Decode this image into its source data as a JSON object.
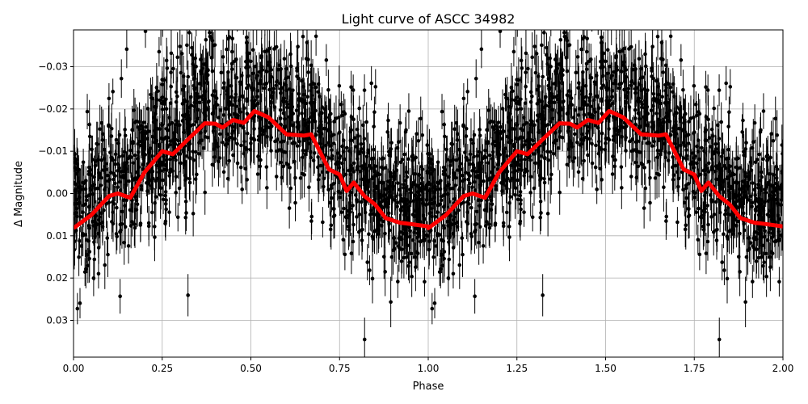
{
  "chart_data": {
    "type": "scatter",
    "title": "Light curve of ASCC 34982",
    "xlabel": "Phase",
    "ylabel": "Δ Magnitude",
    "xlim": [
      0,
      2
    ],
    "ylim": [
      0.0387,
      -0.0387
    ],
    "y_inverted": true,
    "grid": true,
    "xticks": [
      0,
      0.25,
      0.5,
      0.75,
      1.0,
      1.25,
      1.5,
      1.75,
      2.0
    ],
    "xtick_labels": [
      "0.00",
      "0.25",
      "0.50",
      "0.75",
      "1.00",
      "1.25",
      "1.50",
      "1.75",
      "2.00"
    ],
    "yticks": [
      -0.03,
      -0.02,
      -0.01,
      0.0,
      0.01,
      0.02,
      0.03
    ],
    "ytick_labels": [
      "−0.03",
      "−0.02",
      "−0.01",
      "0.00",
      "0.01",
      "0.02",
      "0.03"
    ],
    "series": [
      {
        "kind": "errorbar-points",
        "color": "#000000",
        "note_visible": "dense black data points with vertical error bars, phase-folded and repeated over two cycles"
      },
      {
        "kind": "binned-line",
        "color": "#ff0000",
        "x": [
          0.0,
          0.05,
          0.1,
          0.125,
          0.16,
          0.2,
          0.25,
          0.28,
          0.33,
          0.37,
          0.4,
          0.42,
          0.45,
          0.48,
          0.51,
          0.55,
          0.6,
          0.65,
          0.67,
          0.72,
          0.75,
          0.77,
          0.79,
          0.82,
          0.85,
          0.88,
          0.92,
          0.95,
          1.0
        ],
        "y": [
          0.0082,
          0.0051,
          0.0006,
          0.0,
          0.001,
          -0.005,
          -0.01,
          -0.0093,
          -0.0134,
          -0.0166,
          -0.0165,
          -0.0156,
          -0.0174,
          -0.0167,
          -0.0195,
          -0.018,
          -0.014,
          -0.0137,
          -0.014,
          -0.0057,
          -0.0045,
          -0.0006,
          -0.0026,
          0.0006,
          0.0026,
          0.0058,
          0.0069,
          0.0072,
          0.0078
        ]
      }
    ]
  }
}
